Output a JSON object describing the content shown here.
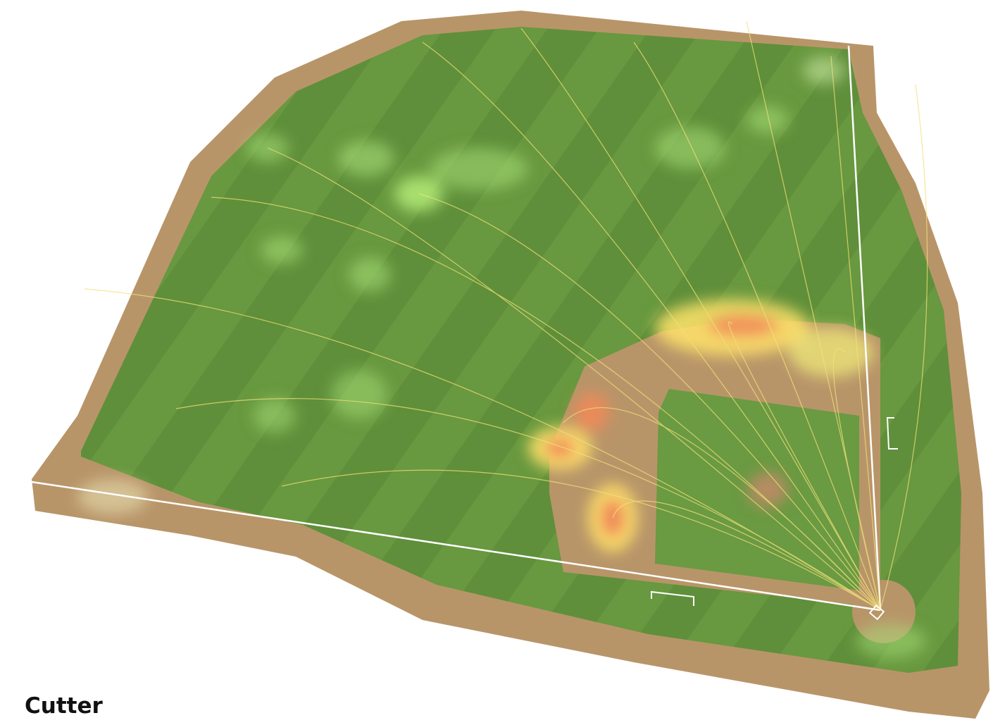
{
  "title": "Cutter"
}
